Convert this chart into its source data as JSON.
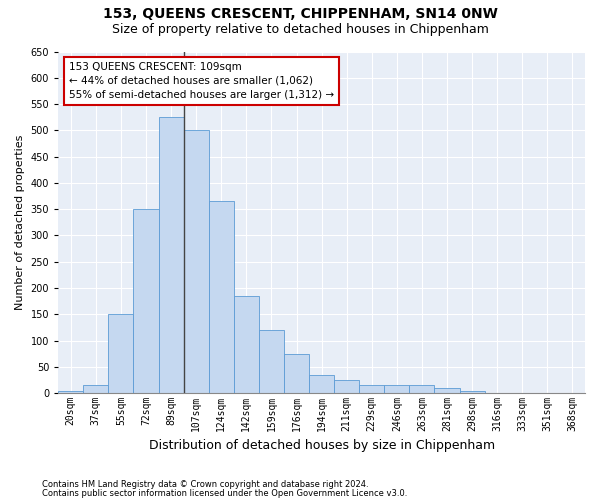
{
  "title": "153, QUEENS CRESCENT, CHIPPENHAM, SN14 0NW",
  "subtitle": "Size of property relative to detached houses in Chippenham",
  "xlabel": "Distribution of detached houses by size in Chippenham",
  "ylabel": "Number of detached properties",
  "categories": [
    "20sqm",
    "37sqm",
    "55sqm",
    "72sqm",
    "89sqm",
    "107sqm",
    "124sqm",
    "142sqm",
    "159sqm",
    "176sqm",
    "194sqm",
    "211sqm",
    "229sqm",
    "246sqm",
    "263sqm",
    "281sqm",
    "298sqm",
    "316sqm",
    "333sqm",
    "351sqm",
    "368sqm"
  ],
  "values": [
    5,
    15,
    150,
    350,
    525,
    500,
    365,
    185,
    120,
    75,
    35,
    25,
    15,
    15,
    15,
    10,
    5,
    0,
    0,
    0,
    0
  ],
  "bar_color": "#c5d8f0",
  "bar_edge_color": "#5b9bd5",
  "annotation_text": "153 QUEENS CRESCENT: 109sqm\n← 44% of detached houses are smaller (1,062)\n55% of semi-detached houses are larger (1,312) →",
  "annotation_box_color": "#ffffff",
  "annotation_box_edge_color": "#cc0000",
  "property_line_color": "#444444",
  "ylim": [
    0,
    650
  ],
  "yticks": [
    0,
    50,
    100,
    150,
    200,
    250,
    300,
    350,
    400,
    450,
    500,
    550,
    600,
    650
  ],
  "background_color": "#e8eef7",
  "title_fontsize": 10,
  "subtitle_fontsize": 9,
  "xlabel_fontsize": 9,
  "ylabel_fontsize": 8,
  "tick_fontsize": 7,
  "footer_line1": "Contains HM Land Registry data © Crown copyright and database right 2024.",
  "footer_line2": "Contains public sector information licensed under the Open Government Licence v3.0."
}
